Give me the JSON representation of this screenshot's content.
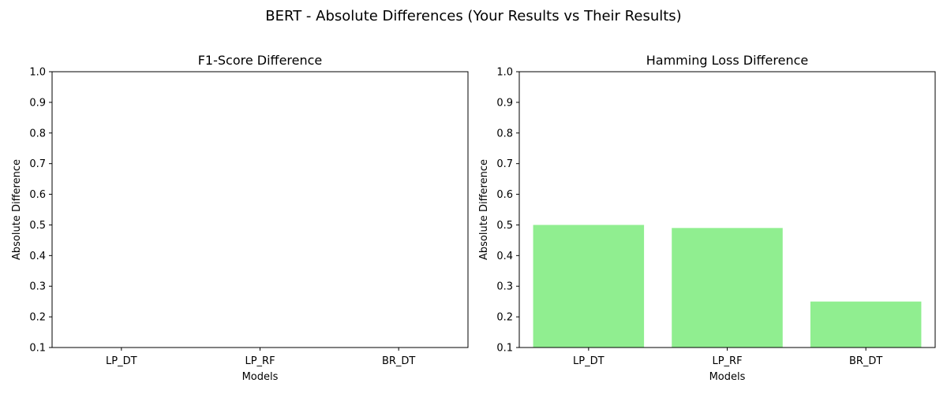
{
  "figure": {
    "title": "BERT - Absolute Differences (Your Results vs Their Results)"
  },
  "chart_data": [
    {
      "type": "bar",
      "title": "F1-Score Difference",
      "xlabel": "Models",
      "ylabel": "Absolute Difference",
      "categories": [
        "LP_DT",
        "LP_RF",
        "BR_DT"
      ],
      "values": [
        0,
        0,
        0
      ],
      "ylim": [
        0.1,
        1.0
      ],
      "yticks": [
        "0.1",
        "0.2",
        "0.3",
        "0.4",
        "0.5",
        "0.6",
        "0.7",
        "0.8",
        "0.9",
        "1.0"
      ],
      "bar_color": "#90ee90",
      "grid": false
    },
    {
      "type": "bar",
      "title": "Hamming Loss Difference",
      "xlabel": "Models",
      "ylabel": "Absolute Difference",
      "categories": [
        "LP_DT",
        "LP_RF",
        "BR_DT"
      ],
      "values": [
        0.5,
        0.49,
        0.25
      ],
      "ylim": [
        0.1,
        1.0
      ],
      "yticks": [
        "0.1",
        "0.2",
        "0.3",
        "0.4",
        "0.5",
        "0.6",
        "0.7",
        "0.8",
        "0.9",
        "1.0"
      ],
      "bar_color": "#90ee90",
      "grid": false
    }
  ]
}
